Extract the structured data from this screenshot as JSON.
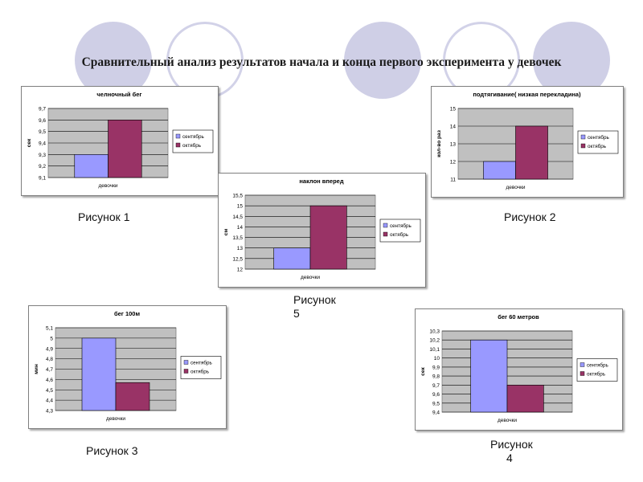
{
  "page": {
    "title": "Сравнительный анализ результатов начала и конца первого  эксперимента у девочек",
    "captions": {
      "fig1": "Рисунок 1",
      "fig2": "Рисунок 2",
      "fig3": "Рисунок 3",
      "fig4_line1": "Рисунок",
      "fig4_line2": "4",
      "fig5_line1": "Рисунок",
      "fig5_line2": "5"
    }
  },
  "colors": {
    "september": "#9999ff",
    "october": "#993366",
    "plot_bg": "#c0c0c0",
    "slide_circle_filled": "#cfcfe6",
    "slide_circle_ring": "#d2d2e8"
  },
  "chart_data": [
    {
      "id": "c1",
      "type": "bar",
      "title": "челночный бег",
      "ylabel": "сек",
      "categories": [
        "девочки"
      ],
      "series": [
        {
          "name": "сентябрь",
          "values": [
            9.3
          ]
        },
        {
          "name": "октябрь",
          "values": [
            9.6
          ]
        }
      ],
      "ylim": [
        9.1,
        9.7
      ],
      "ticks": [
        "9,1",
        "9,2",
        "9,3",
        "9,4",
        "9,5",
        "9,6",
        "9,7"
      ],
      "grid": true,
      "legend": "right"
    },
    {
      "id": "c2",
      "type": "bar",
      "title": "подтягивание( низкая перекладина)",
      "ylabel": "кол-во раз",
      "categories": [
        "девочки"
      ],
      "series": [
        {
          "name": "сентябрь",
          "values": [
            12
          ]
        },
        {
          "name": "октябрь",
          "values": [
            14
          ]
        }
      ],
      "ylim": [
        11,
        15
      ],
      "ticks": [
        "11",
        "12",
        "13",
        "14",
        "15"
      ],
      "grid": true,
      "legend": "right"
    },
    {
      "id": "c5",
      "type": "bar",
      "title": "наклон вперед",
      "ylabel": "см",
      "categories": [
        "девочки"
      ],
      "series": [
        {
          "name": "сентябрь",
          "values": [
            13
          ]
        },
        {
          "name": "октябрь",
          "values": [
            15
          ]
        }
      ],
      "ylim": [
        12,
        15.5
      ],
      "ticks": [
        "12",
        "12,5",
        "13",
        "13,5",
        "14",
        "14,5",
        "15",
        "15,5"
      ],
      "grid": true,
      "legend": "right"
    },
    {
      "id": "c3",
      "type": "bar",
      "title": "бег 100м",
      "ylabel": "мин",
      "categories": [
        "девочки"
      ],
      "series": [
        {
          "name": "сентябрь",
          "values": [
            5.0
          ]
        },
        {
          "name": "октябрь",
          "values": [
            4.57
          ]
        }
      ],
      "ylim": [
        4.3,
        5.1
      ],
      "ticks": [
        "4,3",
        "4,4",
        "4,5",
        "4,6",
        "4,7",
        "4,8",
        "4,9",
        "5",
        "5,1"
      ],
      "grid": true,
      "legend": "right"
    },
    {
      "id": "c4",
      "type": "bar",
      "title": "бег 60 метров",
      "ylabel": "сек",
      "categories": [
        "девочки"
      ],
      "series": [
        {
          "name": "сентябрь",
          "values": [
            10.2
          ]
        },
        {
          "name": "октябрь",
          "values": [
            9.7
          ]
        }
      ],
      "ylim": [
        9.4,
        10.3
      ],
      "ticks": [
        "9,4",
        "9,5",
        "9,6",
        "9,7",
        "9,8",
        "9,9",
        "10",
        "10,1",
        "10,2",
        "10,3"
      ],
      "grid": true,
      "legend": "right"
    }
  ]
}
